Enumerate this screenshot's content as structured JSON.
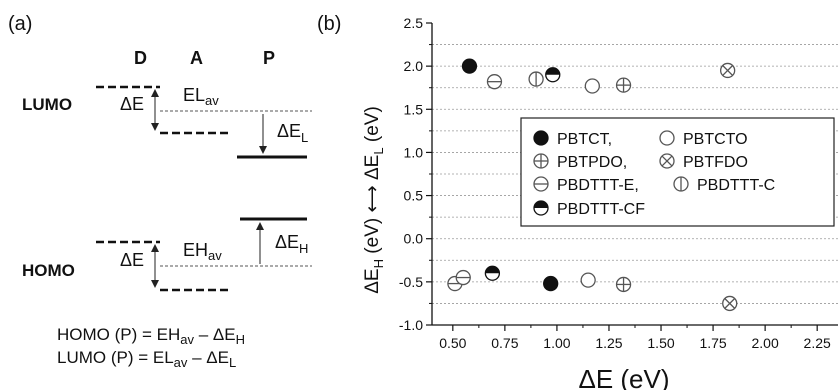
{
  "panel_a": {
    "label": "(a)",
    "col_d": "D",
    "col_a": "A",
    "col_p": "P",
    "lumo": "LUMO",
    "homo": "HOMO",
    "delta_e": "ΔE",
    "el_av_base": "EL",
    "el_av_sub": "av",
    "eh_av_base": "EH",
    "eh_av_sub": "av",
    "delta_el_base": "ΔE",
    "delta_el_sub": "L",
    "delta_eh_base": "ΔE",
    "delta_eh_sub": "H",
    "eq1_a": "HOMO (P) = EH",
    "eq1_sub1": "av",
    "eq1_b": " – ΔE",
    "eq1_sub2": "H",
    "eq2_a": "LUMO  (P) = EL",
    "eq2_sub1": "av",
    "eq2_b": "  –  ΔE",
    "eq2_sub2": "L"
  },
  "panel_b": {
    "label": "(b)",
    "ylabel_top": "ΔE",
    "ylabel_top_sub": "L",
    "ylabel_top_unit": "(eV)",
    "ylabel_bottom": "ΔE",
    "ylabel_bottom_sub": "H",
    "ylabel_bottom_unit": "(eV)",
    "arrow_glyph": "⟷"
  },
  "chart_data": {
    "type": "scatter",
    "xlabel": "ΔE (eV)",
    "ylabel": "ΔEL (eV)  ⟷  ΔEH (eV)",
    "xlim": [
      0.4,
      2.35
    ],
    "ylim": [
      -1.0,
      2.5
    ],
    "xticks": [
      "0.50",
      "0.75",
      "1.00",
      "1.25",
      "1.50",
      "1.75",
      "2.00",
      "2.25"
    ],
    "yticks": [
      "-1.0",
      "-0.5",
      "0.0",
      "0.5",
      "1.0",
      "1.5",
      "2.0",
      "2.5"
    ],
    "grid": "dotted horizontal",
    "legend_position": "right",
    "series": [
      {
        "name": "PBTCT,",
        "marker": "filled-circle",
        "points": [
          [
            0.58,
            2.0
          ],
          [
            0.97,
            -0.52
          ]
        ]
      },
      {
        "name": "PBTCTO",
        "marker": "open-circle",
        "points": [
          [
            1.17,
            1.77
          ],
          [
            1.15,
            -0.48
          ]
        ]
      },
      {
        "name": "PBTPDO,",
        "marker": "circle-plus",
        "points": [
          [
            1.32,
            1.78
          ],
          [
            1.32,
            -0.53
          ]
        ]
      },
      {
        "name": "PBTFDO",
        "marker": "circle-x",
        "points": [
          [
            1.82,
            1.95
          ],
          [
            1.83,
            -0.75
          ]
        ]
      },
      {
        "name": "PBDTTT-E,",
        "marker": "circle-hline",
        "points": [
          [
            0.7,
            1.82
          ],
          [
            0.51,
            -0.52
          ],
          [
            0.55,
            -0.45
          ]
        ]
      },
      {
        "name": "PBDTTT-C",
        "marker": "circle-vline",
        "points": [
          [
            0.9,
            1.85
          ]
        ]
      },
      {
        "name": "PBDTTT-CF",
        "marker": "half-filled-circle",
        "points": [
          [
            0.98,
            1.9
          ],
          [
            0.69,
            -0.4
          ]
        ]
      }
    ]
  }
}
